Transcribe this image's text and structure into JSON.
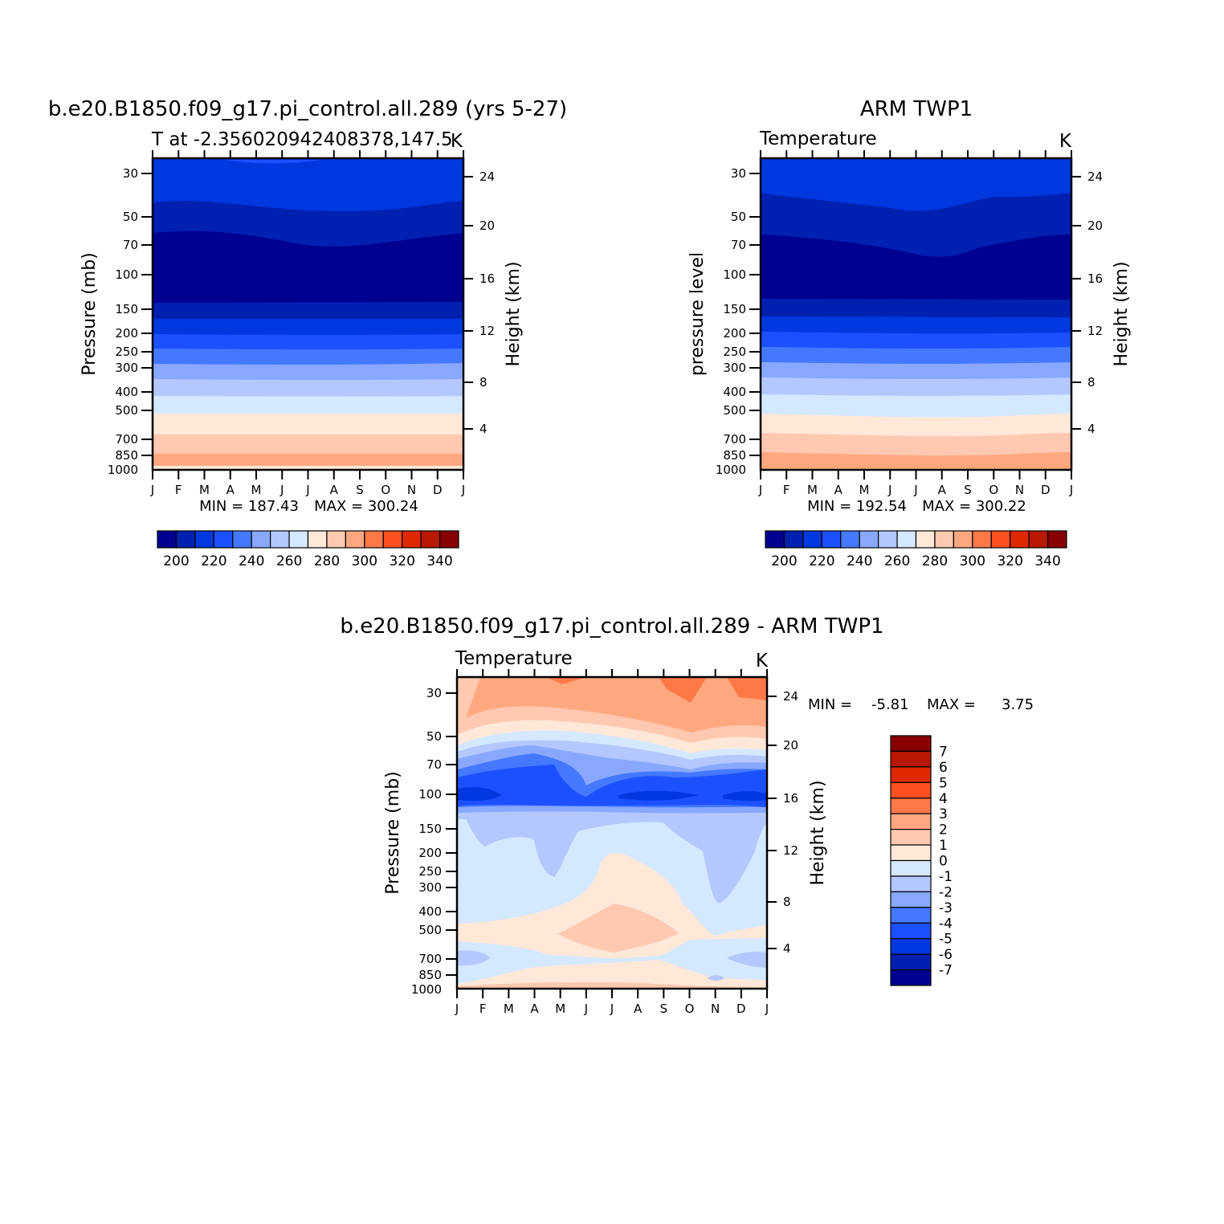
{
  "colors": {
    "abs_scale": [
      "#000090",
      "#0020b0",
      "#0038e0",
      "#1c50ff",
      "#4478ff",
      "#88a8ff",
      "#b4c8ff",
      "#d4e8ff",
      "#ffe8d8",
      "#ffc8b0",
      "#ffa880",
      "#ff7848",
      "#ff5020",
      "#e02800",
      "#b81800",
      "#880000"
    ],
    "diff_scale": [
      "#000090",
      "#0020b0",
      "#0038e0",
      "#1c50ff",
      "#4478ff",
      "#88a8ff",
      "#b4c8ff",
      "#d4e8ff",
      "#ffe8d8",
      "#ffc8b0",
      "#ffa880",
      "#ff7848",
      "#ff5020",
      "#e02800",
      "#b81800",
      "#880000"
    ]
  },
  "chart_data": [
    {
      "type": "heatmap",
      "title": "b.e20.B1850.f09_g17.pi_control.all.289 (yrs 5-27)",
      "subtitle_left": "T at -2.356020942408378,147.5",
      "units": "K",
      "xlabel": "",
      "ylabel": "Pressure (mb)",
      "ylabel_right": "Height (km)",
      "x_ticks": [
        "J",
        "F",
        "M",
        "A",
        "M",
        "J",
        "J",
        "A",
        "S",
        "O",
        "N",
        "D",
        "J"
      ],
      "y_ticks": [
        "30",
        "50",
        "70",
        "100",
        "150",
        "200",
        "250",
        "300",
        "400",
        "500",
        "700",
        "850",
        "1000"
      ],
      "y_ticks_right": [
        "24",
        "20",
        "16",
        "12",
        "8",
        "4"
      ],
      "min_label": "MIN = 187.43",
      "max_label": "MAX = 300.24",
      "min": 187.43,
      "max": 300.24,
      "colorbar_labels": [
        "200",
        "220",
        "240",
        "260",
        "280",
        "300",
        "320",
        "340"
      ],
      "contour_levels": [
        190,
        200,
        210,
        220,
        230,
        240,
        250,
        260,
        270,
        280,
        290,
        300,
        310,
        320,
        330,
        340
      ]
    },
    {
      "type": "heatmap",
      "title": "ARM TWP1",
      "subtitle_left": "Temperature",
      "units": "K",
      "xlabel": "",
      "ylabel": "pressure level",
      "ylabel_right": "Height (km)",
      "x_ticks": [
        "J",
        "F",
        "M",
        "A",
        "M",
        "J",
        "J",
        "A",
        "S",
        "O",
        "N",
        "D",
        "J"
      ],
      "y_ticks": [
        "30",
        "50",
        "70",
        "100",
        "150",
        "200",
        "250",
        "300",
        "400",
        "500",
        "700",
        "850",
        "1000"
      ],
      "y_ticks_right": [
        "24",
        "20",
        "16",
        "12",
        "8",
        "4"
      ],
      "min_label": "MIN = 192.54",
      "max_label": "MAX = 300.22",
      "min": 192.54,
      "max": 300.22,
      "colorbar_labels": [
        "200",
        "220",
        "240",
        "260",
        "280",
        "300",
        "320",
        "340"
      ],
      "contour_levels": [
        190,
        200,
        210,
        220,
        230,
        240,
        250,
        260,
        270,
        280,
        290,
        300,
        310,
        320,
        330,
        340
      ]
    },
    {
      "type": "heatmap",
      "title": "b.e20.B1850.f09_g17.pi_control.all.289 - ARM TWP1",
      "subtitle_left": "Temperature",
      "units": "K",
      "xlabel": "",
      "ylabel": "Pressure (mb)",
      "ylabel_right": "Height (km)",
      "x_ticks": [
        "J",
        "F",
        "M",
        "A",
        "M",
        "J",
        "J",
        "A",
        "S",
        "O",
        "N",
        "D",
        "J"
      ],
      "y_ticks": [
        "30",
        "50",
        "70",
        "100",
        "150",
        "200",
        "250",
        "300",
        "400",
        "500",
        "700",
        "850",
        "1000"
      ],
      "y_ticks_right": [
        "24",
        "20",
        "16",
        "12",
        "8",
        "4"
      ],
      "min_label": "MIN =",
      "min_value": "-5.81",
      "max_label": "MAX =",
      "max_value": "3.75",
      "min": -5.81,
      "max": 3.75,
      "colorbar_labels": [
        "7",
        "6",
        "5",
        "4",
        "3",
        "2",
        "1",
        "0",
        "-1",
        "-2",
        "-3",
        "-4",
        "-5",
        "-6",
        "-7"
      ],
      "contour_levels": [
        -7,
        -6,
        -5,
        -4,
        -3,
        -2,
        -1,
        0,
        1,
        2,
        3,
        4,
        5,
        6,
        7
      ]
    }
  ]
}
